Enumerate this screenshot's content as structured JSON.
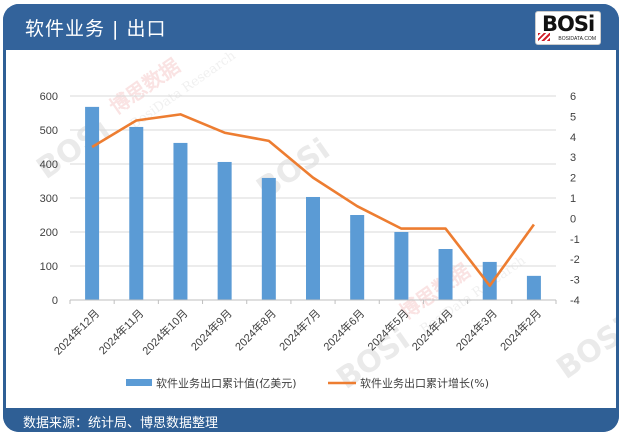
{
  "header": {
    "title": "软件业务 | 出口",
    "logo_text": "BOSi",
    "logo_subtext": "BOSIDATA.COM"
  },
  "footer": {
    "source": "数据来源：统计局、博思数据整理"
  },
  "watermark": {
    "brand": "BOSi",
    "cn": "博思数据",
    "en": "BosiData Research",
    "site": "BOSIDATA.COM"
  },
  "colors": {
    "header_bg": "#33639b",
    "bar": "#5b9bd5",
    "line": "#ed7d31",
    "grid": "#d9d9d9",
    "text": "#404040"
  },
  "legend": {
    "bar_label": "软件业务出口累计值(亿美元)",
    "line_label": "软件业务出口累计增长(%)"
  },
  "chart_data": {
    "type": "bar",
    "title": "软件业务 | 出口",
    "categories": [
      "2024年12月",
      "2024年11月",
      "2024年10月",
      "2024年9月",
      "2024年8月",
      "2024年7月",
      "2024年6月",
      "2024年5月",
      "2024年4月",
      "2024年3月",
      "2024年2月"
    ],
    "series": [
      {
        "name": "软件业务出口累计值(亿美元)",
        "type": "bar",
        "axis": "left",
        "values": [
          568,
          509,
          462,
          406,
          359,
          303,
          250,
          200,
          150,
          112,
          71
        ]
      },
      {
        "name": "软件业务出口累计增长(%)",
        "type": "line",
        "axis": "right",
        "values": [
          3.5,
          4.8,
          5.1,
          4.2,
          3.8,
          2.0,
          0.6,
          -0.5,
          -0.5,
          -3.3,
          -0.3
        ]
      }
    ],
    "xlabel": "",
    "ylabel": "",
    "ylim": [
      0,
      600
    ],
    "yticks": [
      0,
      100,
      200,
      300,
      400,
      500,
      600
    ],
    "y2lim": [
      -4,
      6
    ],
    "y2ticks": [
      -4,
      -3,
      -2,
      -1,
      0,
      1,
      2,
      3,
      4,
      5,
      6
    ],
    "grid": true,
    "legend_position": "bottom"
  }
}
